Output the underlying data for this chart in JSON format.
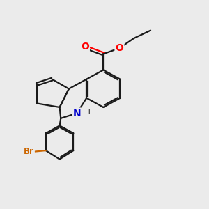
{
  "background_color": "#ebebeb",
  "bond_color": "#1a1a1a",
  "bond_width": 1.6,
  "atom_colors": {
    "O": "#ff0000",
    "N": "#0000cd",
    "Br": "#cc6600",
    "C": "#1a1a1a"
  },
  "font_size": 8.5,
  "fig_size": [
    3.0,
    3.0
  ],
  "dpi": 100
}
